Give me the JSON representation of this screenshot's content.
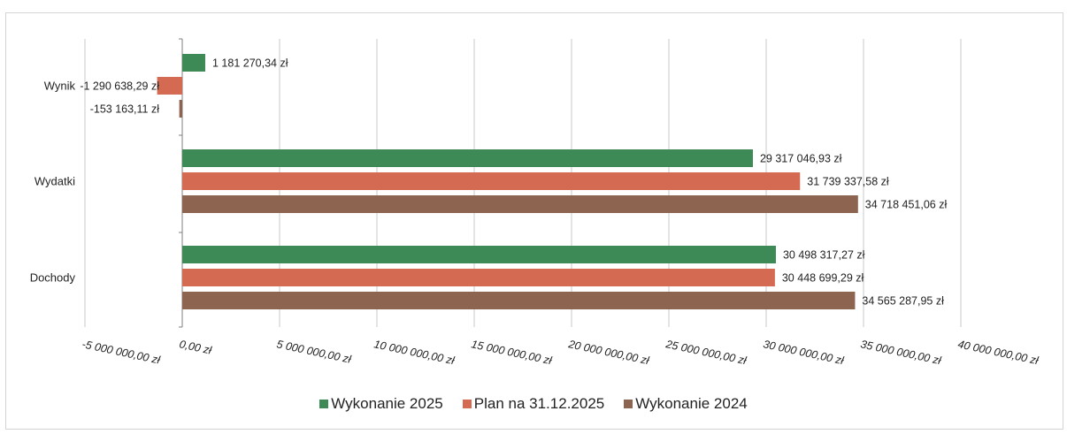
{
  "chart_data": {
    "type": "bar",
    "orientation": "horizontal",
    "categories": [
      "Wynik",
      "Wydatki",
      "Dochody"
    ],
    "series": [
      {
        "name": "Wykonanie 2025",
        "color": "#3e8a57",
        "values": [
          1181270.34,
          29317046.93,
          30498317.27
        ],
        "labels": [
          "1 181 270,34 zł",
          "29 317 046,93 zł",
          "30 498 317,27 zł"
        ]
      },
      {
        "name": "Plan na 31.12.2025",
        "color": "#d46a51",
        "values": [
          -1290638.29,
          31739337.58,
          30448699.29
        ],
        "labels": [
          "-1 290 638,29 zł",
          "31 739 337,58 zł",
          "30 448 699,29 zł"
        ]
      },
      {
        "name": "Wykonanie 2024",
        "color": "#8c6450",
        "values": [
          -153163.11,
          34718451.06,
          34565287.95
        ],
        "labels": [
          "-153 163,11 zł",
          "34 718 451,06 zł",
          "34 565 287,95 zł"
        ]
      }
    ],
    "xlim": [
      -5000000,
      40000000
    ],
    "xticks": [
      -5000000,
      0,
      5000000,
      10000000,
      15000000,
      20000000,
      25000000,
      30000000,
      35000000,
      40000000
    ],
    "xtick_labels": [
      "-5 000 000,00 zł",
      "0,00 zł",
      "5 000 000,00 zł",
      "10 000 000,00 zł",
      "15 000 000,00 zł",
      "20 000 000,00 zł",
      "25 000 000,00 zł",
      "30 000 000,00 zł",
      "35 000 000,00 zł",
      "40 000 000,00 zł"
    ],
    "grid": "vertical",
    "legend_position": "bottom"
  }
}
